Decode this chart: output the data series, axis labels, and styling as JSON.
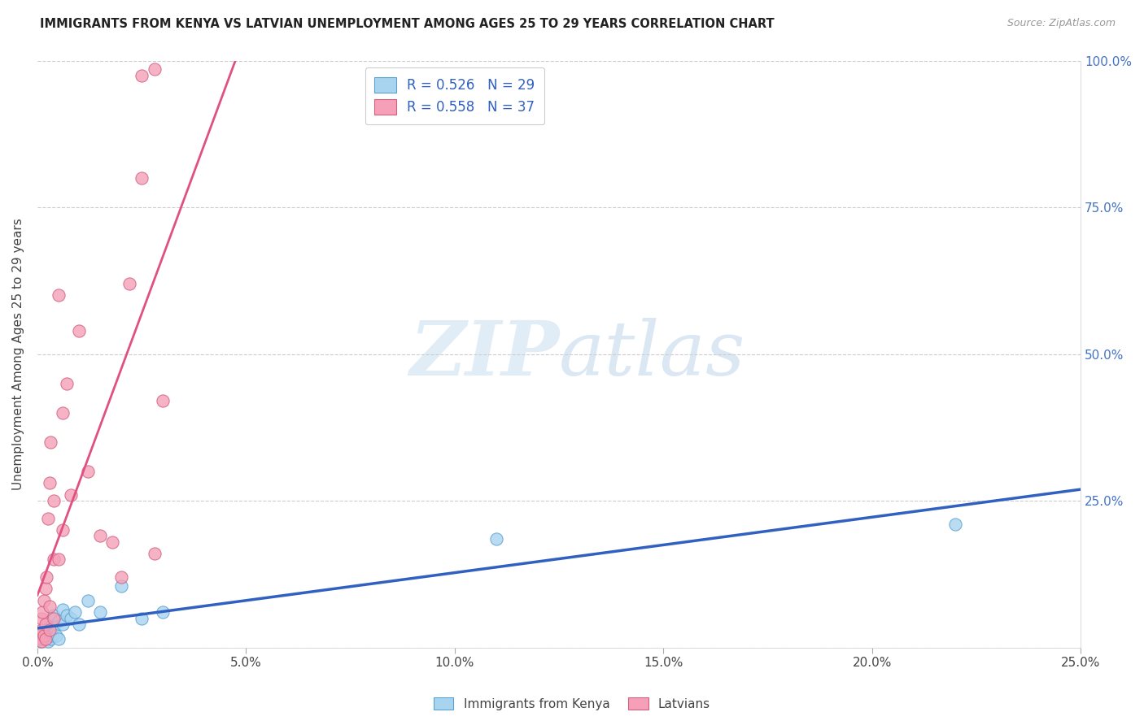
{
  "title": "IMMIGRANTS FROM KENYA VS LATVIAN UNEMPLOYMENT AMONG AGES 25 TO 29 YEARS CORRELATION CHART",
  "source": "Source: ZipAtlas.com",
  "ylabel": "Unemployment Among Ages 25 to 29 years",
  "xlim": [
    0,
    0.25
  ],
  "ylim": [
    0,
    1.0
  ],
  "xticks": [
    0.0,
    0.05,
    0.1,
    0.15,
    0.2,
    0.25
  ],
  "yticks": [
    0.0,
    0.25,
    0.5,
    0.75,
    1.0
  ],
  "xtick_labels": [
    "0.0%",
    "5.0%",
    "10.0%",
    "15.0%",
    "20.0%",
    "25.0%"
  ],
  "ytick_labels_left": [
    "",
    "",
    "",
    "",
    ""
  ],
  "ytick_labels_right": [
    "",
    "25.0%",
    "50.0%",
    "75.0%",
    "100.0%"
  ],
  "blue_color": "#a8d4f0",
  "blue_edge_color": "#5aa0d0",
  "pink_color": "#f5a0b8",
  "pink_edge_color": "#d06080",
  "blue_line_color": "#3060c0",
  "pink_line_color": "#e05080",
  "R_blue": 0.526,
  "N_blue": 29,
  "R_pink": 0.558,
  "N_pink": 37,
  "legend_label_blue": "Immigrants from Kenya",
  "legend_label_pink": "Latvians",
  "watermark_zip": "ZIP",
  "watermark_atlas": "atlas",
  "background_color": "#ffffff",
  "kenya_x": [
    0.0008,
    0.0012,
    0.0015,
    0.0018,
    0.002,
    0.0022,
    0.0025,
    0.003,
    0.003,
    0.0032,
    0.0035,
    0.004,
    0.004,
    0.0045,
    0.005,
    0.005,
    0.006,
    0.006,
    0.007,
    0.008,
    0.009,
    0.01,
    0.012,
    0.015,
    0.02,
    0.025,
    0.03,
    0.11,
    0.22
  ],
  "kenya_y": [
    0.01,
    0.015,
    0.02,
    0.025,
    0.015,
    0.03,
    0.01,
    0.025,
    0.035,
    0.015,
    0.02,
    0.035,
    0.055,
    0.02,
    0.045,
    0.015,
    0.04,
    0.065,
    0.055,
    0.05,
    0.06,
    0.04,
    0.08,
    0.06,
    0.105,
    0.05,
    0.06,
    0.185,
    0.21
  ],
  "latvian_x": [
    0.0005,
    0.0008,
    0.001,
    0.001,
    0.001,
    0.0012,
    0.0015,
    0.0015,
    0.002,
    0.002,
    0.002,
    0.0022,
    0.0025,
    0.003,
    0.003,
    0.003,
    0.0032,
    0.004,
    0.004,
    0.004,
    0.005,
    0.005,
    0.006,
    0.006,
    0.007,
    0.008,
    0.01,
    0.012,
    0.015,
    0.018,
    0.02,
    0.022,
    0.025,
    0.028,
    0.03,
    0.025,
    0.028
  ],
  "latvian_y": [
    0.02,
    0.015,
    0.05,
    0.03,
    0.01,
    0.06,
    0.08,
    0.02,
    0.04,
    0.1,
    0.015,
    0.12,
    0.22,
    0.07,
    0.28,
    0.03,
    0.35,
    0.15,
    0.25,
    0.05,
    0.15,
    0.6,
    0.4,
    0.2,
    0.45,
    0.26,
    0.54,
    0.3,
    0.19,
    0.18,
    0.12,
    0.62,
    0.8,
    0.16,
    0.42,
    0.975,
    0.985
  ],
  "pink_line_x": [
    0.0,
    0.065
  ],
  "pink_line_y": [
    0.0,
    1.0
  ],
  "blue_line_x": [
    0.0,
    0.25
  ],
  "blue_line_y": [
    0.01,
    0.19
  ]
}
